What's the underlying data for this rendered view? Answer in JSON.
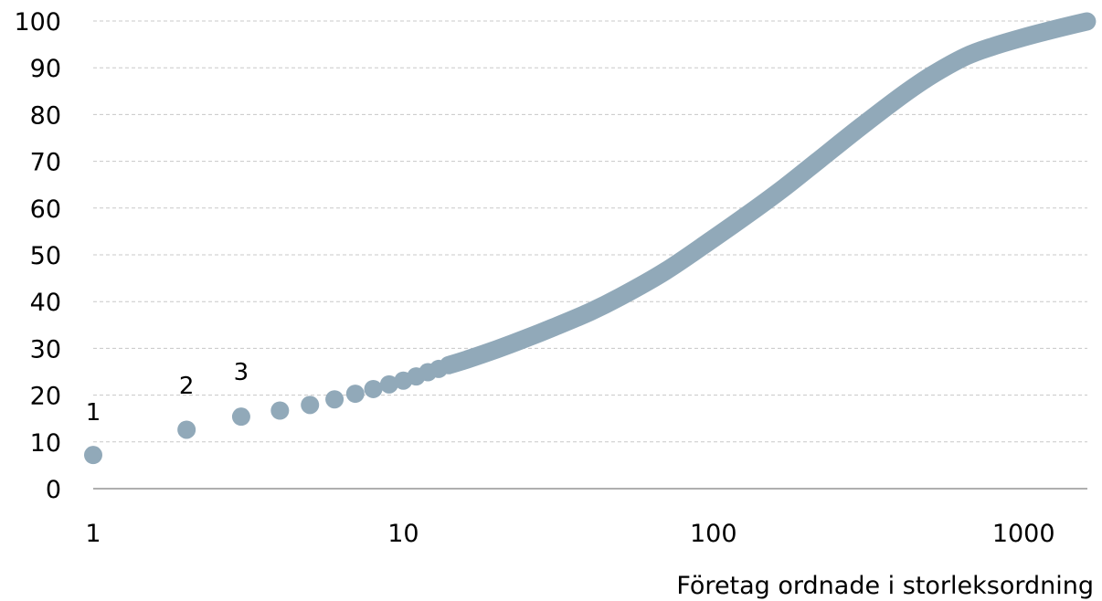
{
  "chart_data": {
    "type": "scatter",
    "title": "",
    "xlabel": "Företag ordnade  i storleksordning",
    "ylabel": "",
    "x_scale": "log",
    "xlim": [
      1,
      1650
    ],
    "ylim": [
      0,
      100
    ],
    "y_ticks": [
      "0",
      "10",
      "20",
      "30",
      "40",
      "50",
      "60",
      "70",
      "80",
      "90",
      "100"
    ],
    "x_ticks": [
      {
        "value": 1,
        "label": "1"
      },
      {
        "value": 10,
        "label": "10"
      },
      {
        "value": 100,
        "label": "100"
      },
      {
        "value": 1000,
        "label": "1000"
      }
    ],
    "grid": "horizontal",
    "marker_color": "#91a9b9",
    "points": [
      {
        "x": 1,
        "y": 7.2
      },
      {
        "x": 2,
        "y": 12.6
      },
      {
        "x": 3,
        "y": 15.4
      },
      {
        "x": 4,
        "y": 16.7
      },
      {
        "x": 5,
        "y": 17.9
      },
      {
        "x": 6,
        "y": 19.1
      },
      {
        "x": 7,
        "y": 20.3
      },
      {
        "x": 8,
        "y": 21.3
      },
      {
        "x": 9,
        "y": 22.3
      },
      {
        "x": 10,
        "y": 23.1
      },
      {
        "x": 11,
        "y": 24.0
      },
      {
        "x": 12,
        "y": 24.9
      },
      {
        "x": 13,
        "y": 25.6
      }
    ],
    "curve": {
      "x": [
        14,
        16,
        20,
        25,
        30,
        40,
        50,
        70,
        100,
        130,
        170,
        220,
        300,
        400,
        500,
        650,
        800,
        1000,
        1200,
        1400,
        1600
      ],
      "y": [
        26.4,
        27.6,
        29.8,
        32.2,
        34.3,
        37.8,
        41.0,
        46.5,
        53.5,
        58.8,
        64.5,
        70.4,
        77.5,
        83.8,
        88.2,
        92.4,
        94.6,
        96.5,
        97.9,
        99.0,
        99.9
      ]
    },
    "annotations": [
      {
        "text": "1",
        "x": 1
      },
      {
        "text": "2",
        "x": 2
      },
      {
        "text": "3",
        "x": 3
      }
    ]
  }
}
